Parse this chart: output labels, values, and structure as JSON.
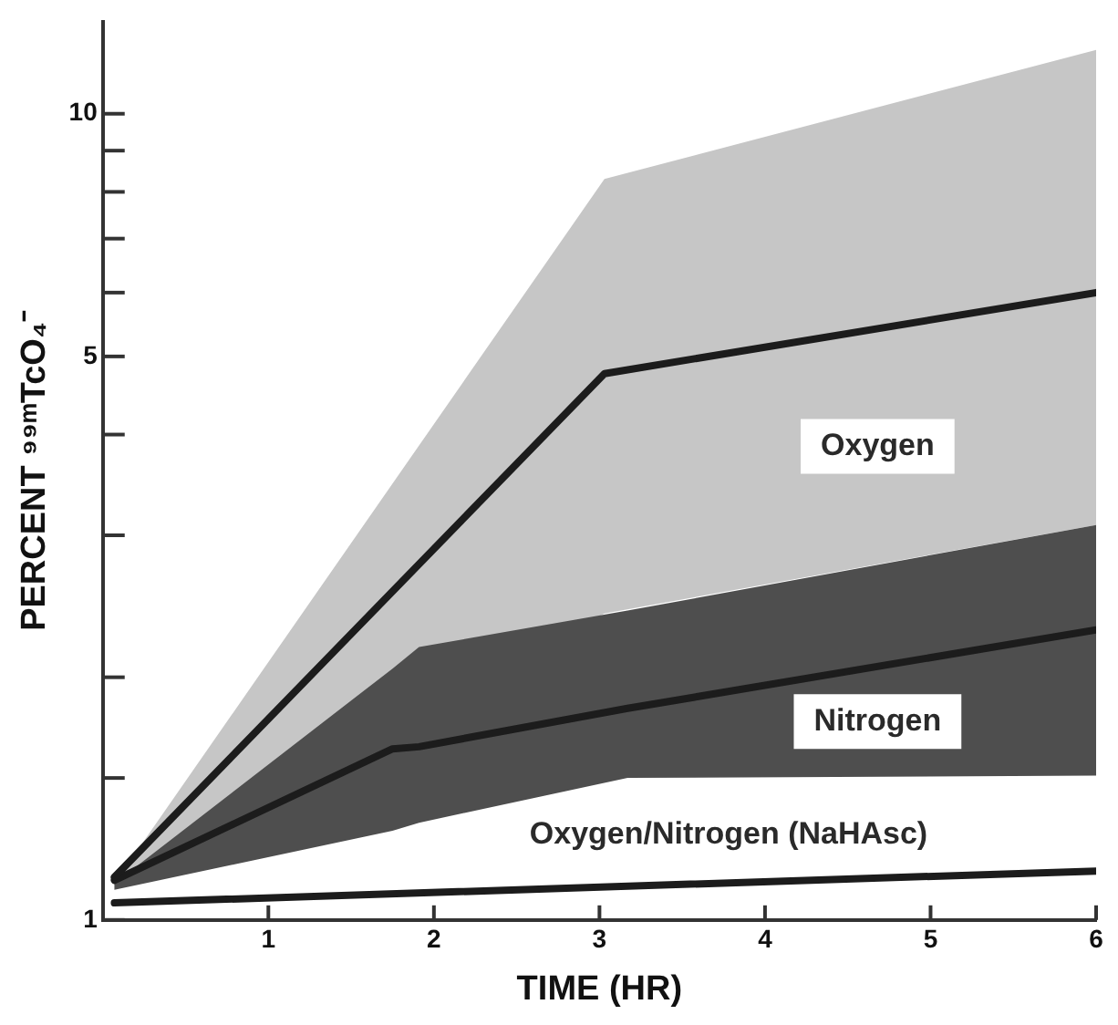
{
  "chart_data": {
    "type": "line",
    "xlabel": "TIME (HR)",
    "ylabel": "PERCENT ⁹⁹ᵐTcO₄⁻",
    "log": "y",
    "grid": false,
    "marker": "none",
    "line_style": "solid",
    "xlim": [
      0,
      6
    ],
    "xticks": [
      1,
      2,
      3,
      4,
      5,
      6
    ],
    "ylim": [
      1,
      13
    ],
    "yticks": [
      1,
      {
        "value": 1.5,
        "label": null
      },
      {
        "value": 2,
        "label": null
      },
      {
        "value": 3,
        "label": null
      },
      {
        "value": 4,
        "label": null
      },
      5,
      {
        "value": 6,
        "label": null
      },
      {
        "value": 7,
        "label": null
      },
      {
        "value": 8,
        "label": null
      },
      {
        "value": 9,
        "label": null
      },
      10
    ],
    "colors": [
      "#c6c6c6",
      "#4e4e4e",
      null
    ],
    "series": [
      {
        "name": "Oxygen",
        "color": "#1c1c1c",
        "x": [
          0.07,
          3.03,
          6
        ],
        "values": [
          1.13,
          4.76,
          6.0
        ],
        "lower": [
          1.11,
          2.4,
          3.09
        ],
        "upper": [
          1.11,
          8.3,
          12
        ]
      },
      {
        "name": "Nitrogen",
        "color": "#1c1c1c",
        "x": [
          0.07,
          1.75,
          1.91,
          3.17,
          6
        ],
        "values": [
          1.12,
          1.63,
          1.64,
          1.83,
          2.29
        ],
        "lower": [
          1.09,
          1.29,
          1.32,
          1.5,
          1.51
        ],
        "upper": [
          1.11,
          2.05,
          2.18,
          2.42,
          3.09
        ]
      },
      {
        "name": "Oxygen/Nitrogen (NaHAsc)",
        "color": "#1c1c1c",
        "x": [
          0.07,
          6
        ],
        "values": [
          1.05,
          1.15
        ]
      }
    ]
  }
}
